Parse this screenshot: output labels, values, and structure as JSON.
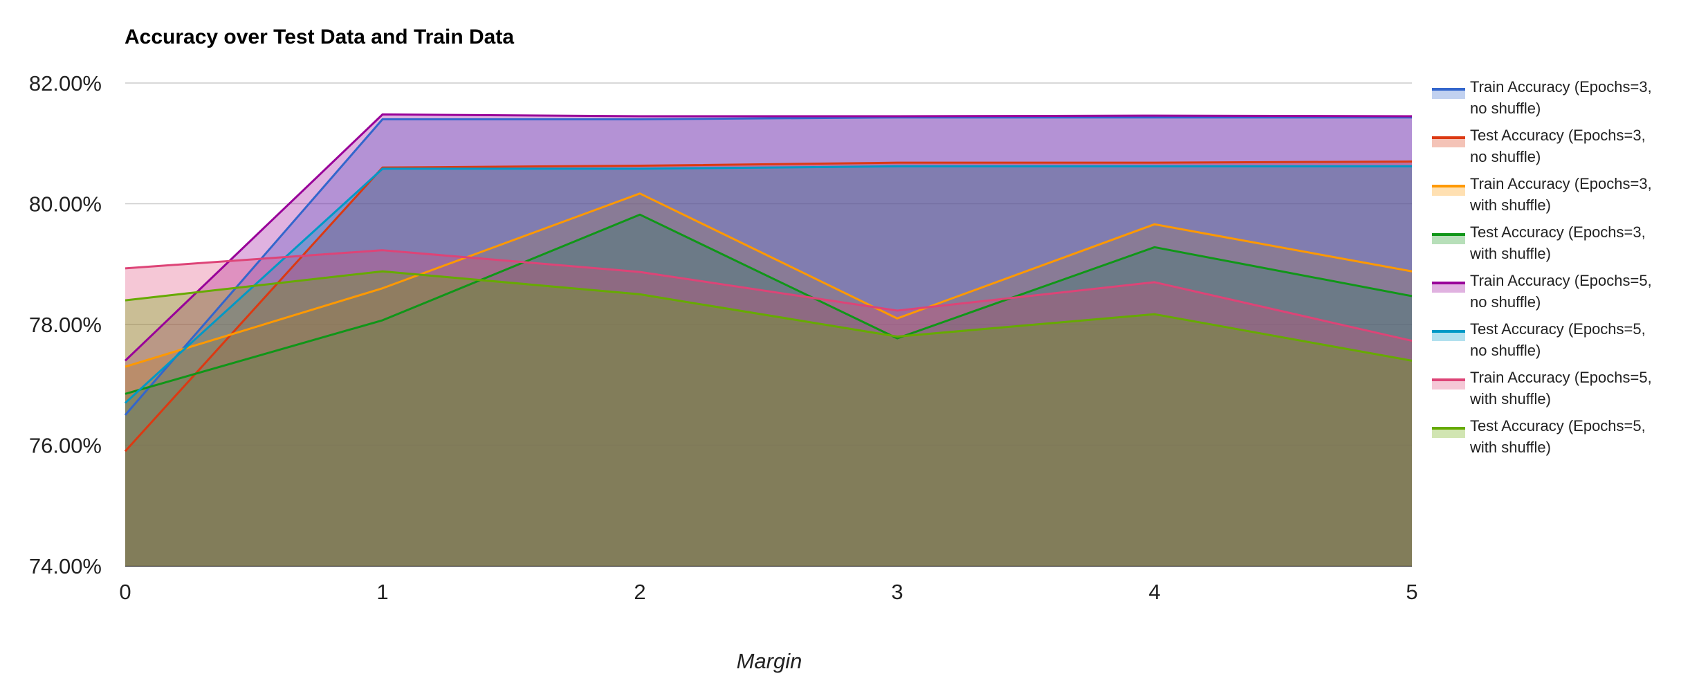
{
  "chart_data": {
    "type": "area",
    "title": "Accuracy over Test Data and Train Data",
    "xlabel": "Margin",
    "ylabel": "",
    "x": [
      0,
      1,
      2,
      3,
      4,
      5
    ],
    "x_ticks": [
      "0",
      "1",
      "2",
      "3",
      "4",
      "5"
    ],
    "ylim": [
      74,
      82
    ],
    "y_ticks": [
      "74.00%",
      "76.00%",
      "78.00%",
      "80.00%",
      "82.00%"
    ],
    "y_tick_values": [
      74,
      76,
      78,
      80,
      82
    ],
    "grid": true,
    "legend_position": "right",
    "stacked": false,
    "series": [
      {
        "name": "Train Accuracy (Epochs=3, no shuffle)",
        "label_lines": [
          "Train Accuracy (Epochs=3,",
          "no shuffle)"
        ],
        "color": "#3366cc",
        "values": [
          76.5,
          81.4,
          81.4,
          81.43,
          81.43,
          81.43
        ]
      },
      {
        "name": "Test Accuracy (Epochs=3, no shuffle)",
        "label_lines": [
          "Test Accuracy (Epochs=3,",
          "no shuffle)"
        ],
        "color": "#dc3912",
        "values": [
          75.9,
          80.6,
          80.63,
          80.68,
          80.68,
          80.7
        ]
      },
      {
        "name": "Train Accuracy (Epochs=3, with shuffle)",
        "label_lines": [
          "Train Accuracy (Epochs=3,",
          "with shuffle)"
        ],
        "color": "#ff9900",
        "values": [
          77.3,
          78.6,
          80.17,
          78.1,
          79.66,
          78.88
        ]
      },
      {
        "name": "Test Accuracy (Epochs=3, with shuffle)",
        "label_lines": [
          "Test Accuracy (Epochs=3,",
          "with shuffle)"
        ],
        "color": "#109618",
        "values": [
          76.85,
          78.07,
          79.82,
          77.77,
          79.28,
          78.47
        ]
      },
      {
        "name": "Train Accuracy (Epochs=5, no shuffle)",
        "label_lines": [
          "Train Accuracy (Epochs=5,",
          "no shuffle)"
        ],
        "color": "#990099",
        "values": [
          77.4,
          81.48,
          81.45,
          81.45,
          81.46,
          81.45
        ]
      },
      {
        "name": "Test Accuracy (Epochs=5, no shuffle)",
        "label_lines": [
          "Test Accuracy (Epochs=5,",
          "no shuffle)"
        ],
        "color": "#0099c6",
        "values": [
          76.7,
          80.58,
          80.58,
          80.62,
          80.62,
          80.62
        ]
      },
      {
        "name": "Train Accuracy (Epochs=5, with shuffle)",
        "label_lines": [
          "Train Accuracy (Epochs=5,",
          "with shuffle)"
        ],
        "color": "#dd4477",
        "values": [
          78.93,
          79.23,
          78.87,
          78.23,
          78.7,
          77.73
        ]
      },
      {
        "name": "Test Accuracy (Epochs=5, with shuffle)",
        "label_lines": [
          "Test Accuracy (Epochs=5,",
          "with shuffle)"
        ],
        "color": "#66aa00",
        "values": [
          78.4,
          78.88,
          78.5,
          77.8,
          78.17,
          77.4
        ]
      }
    ]
  }
}
